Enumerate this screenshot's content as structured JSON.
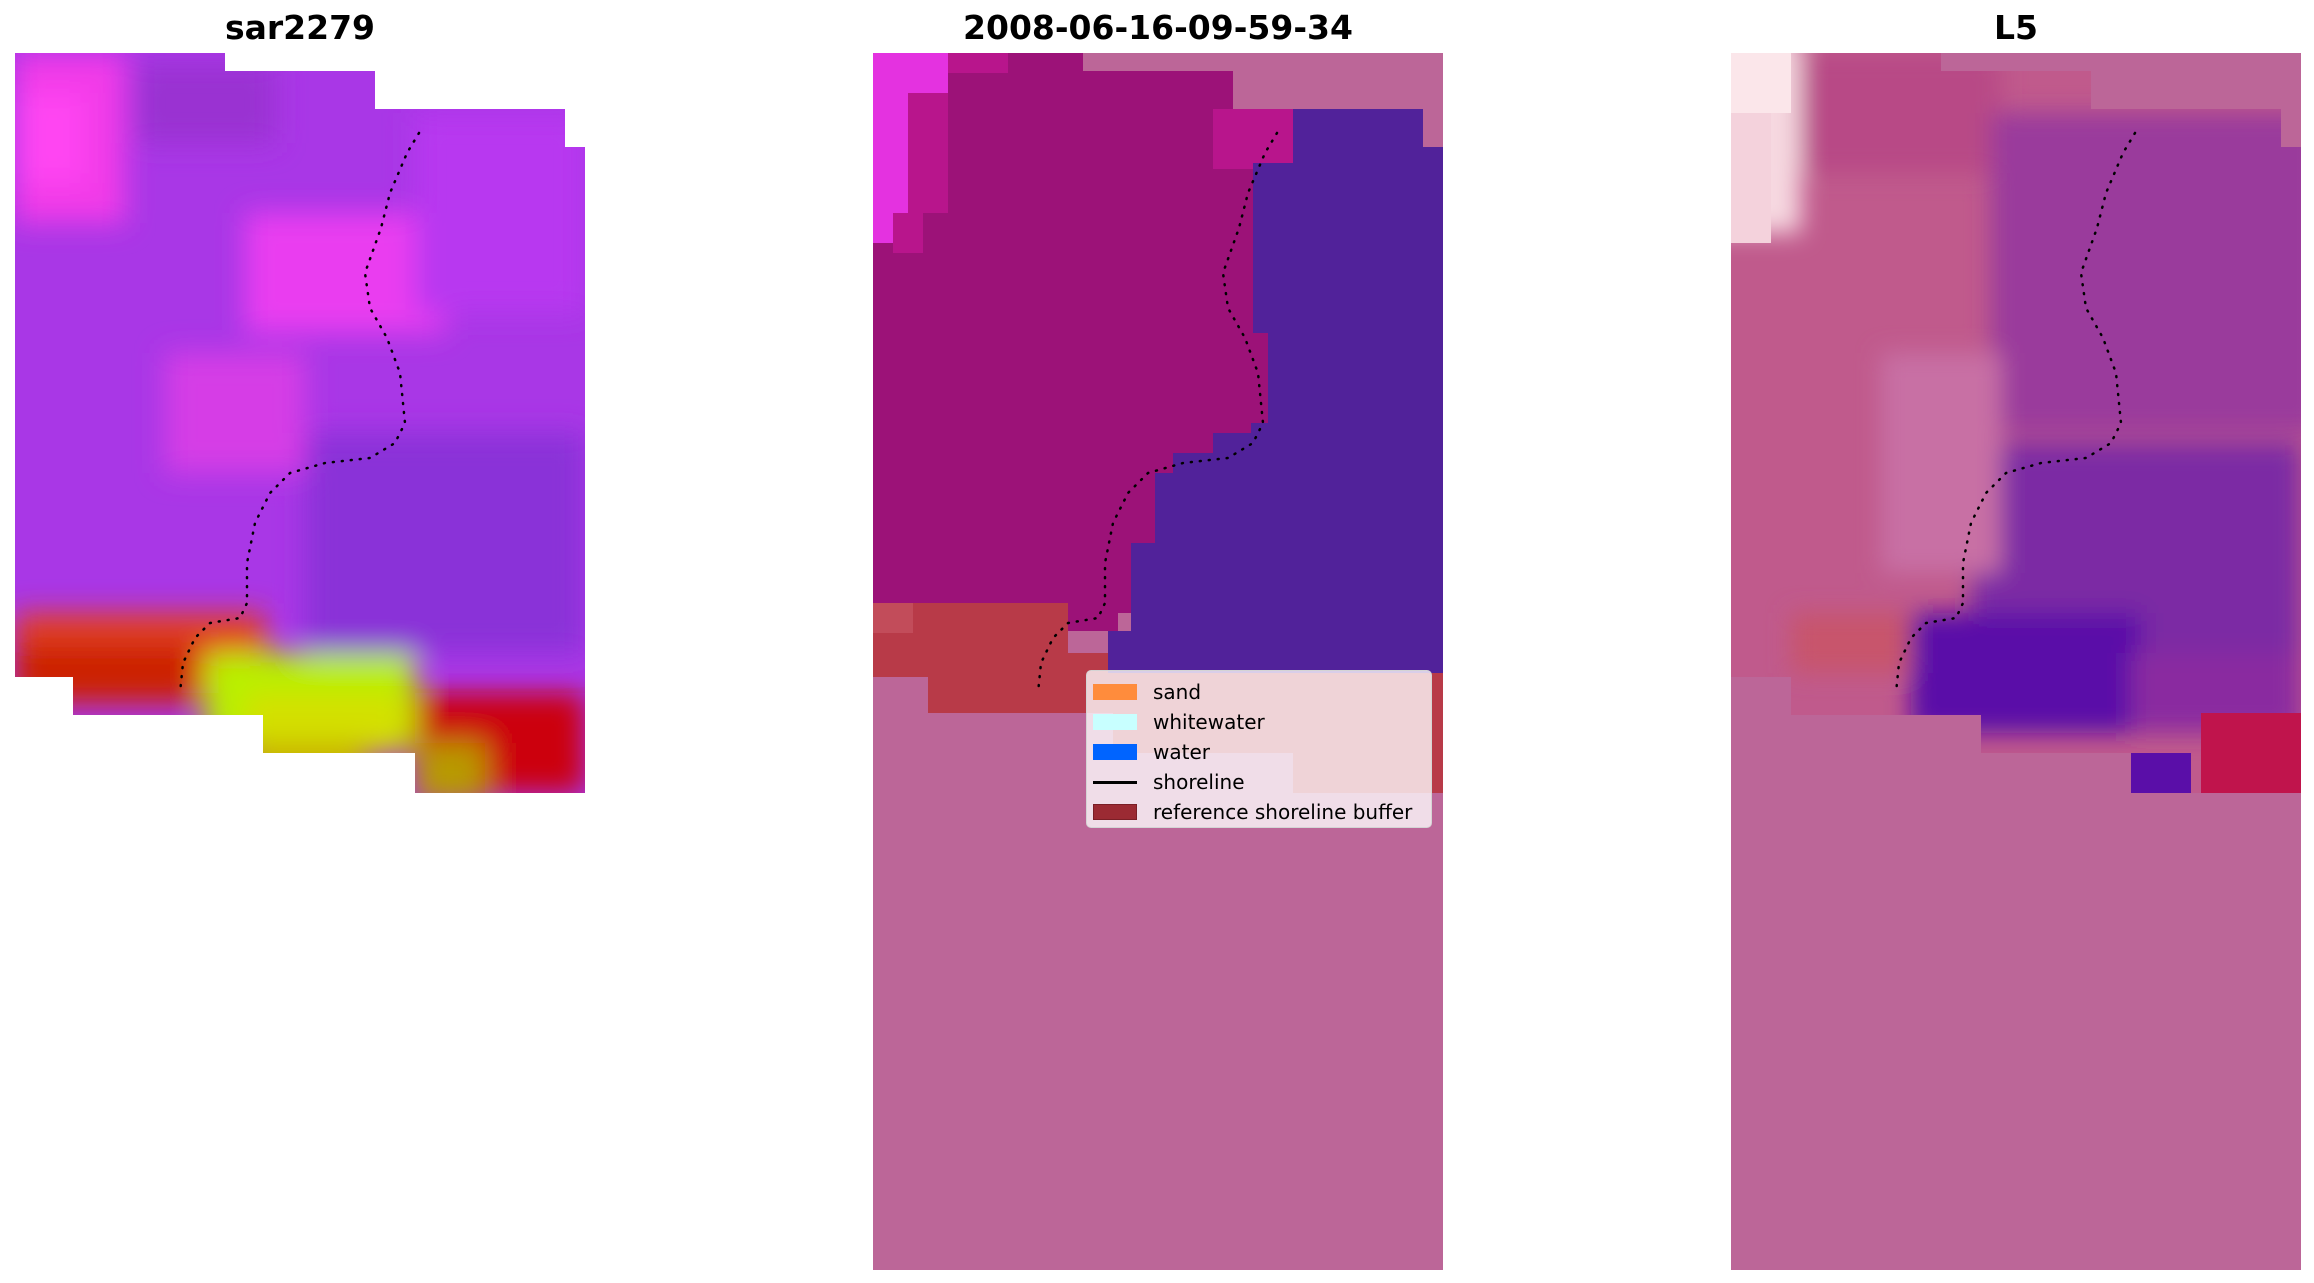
{
  "panels": [
    {
      "title": "sar2279"
    },
    {
      "title": "2008-06-16-09-59-34"
    },
    {
      "title": "L5"
    }
  ],
  "legend": {
    "items": [
      {
        "label": "sand",
        "type": "patch",
        "color": "#ff8c3c"
      },
      {
        "label": "whitewater",
        "type": "patch",
        "color": "#c8ffff"
      },
      {
        "label": "water",
        "type": "patch",
        "color": "#0064ff"
      },
      {
        "label": "shoreline",
        "type": "line",
        "color": "#000000"
      },
      {
        "label": "reference shoreline buffer",
        "type": "patch",
        "color": "#9b2a33"
      }
    ]
  },
  "colors": {
    "background_pink": "#bc6698",
    "classified_land": "#9c1278",
    "classified_water": "#51229a",
    "reference_buffer": "#b83a48",
    "sar_purple": "#a937e6",
    "sar_magenta": "#e83de6",
    "sar_red": "#cc1a00",
    "sar_yellow": "#b8f000"
  }
}
